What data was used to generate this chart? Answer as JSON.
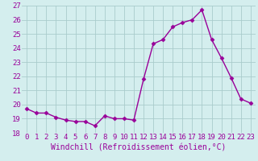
{
  "x": [
    0,
    1,
    2,
    3,
    4,
    5,
    6,
    7,
    8,
    9,
    10,
    11,
    12,
    13,
    14,
    15,
    16,
    17,
    18,
    19,
    20,
    21,
    22,
    23
  ],
  "y": [
    19.7,
    19.4,
    19.4,
    19.1,
    18.9,
    18.8,
    18.8,
    18.5,
    19.2,
    19.0,
    19.0,
    18.9,
    21.8,
    24.3,
    24.6,
    25.5,
    25.8,
    26.0,
    26.7,
    24.6,
    23.3,
    21.9,
    20.4,
    20.1
  ],
  "line_color": "#990099",
  "marker": "D",
  "markersize": 2.5,
  "linewidth": 1.0,
  "xlabel": "Windchill (Refroidissement éolien,°C)",
  "ylim": [
    18,
    27
  ],
  "xlim": [
    -0.5,
    23.5
  ],
  "yticks": [
    18,
    19,
    20,
    21,
    22,
    23,
    24,
    25,
    26,
    27
  ],
  "xticks": [
    0,
    1,
    2,
    3,
    4,
    5,
    6,
    7,
    8,
    9,
    10,
    11,
    12,
    13,
    14,
    15,
    16,
    17,
    18,
    19,
    20,
    21,
    22,
    23
  ],
  "bg_color": "#d4eeee",
  "grid_color": "#aacccc",
  "xlabel_color": "#990099",
  "xlabel_fontsize": 7.0,
  "tick_fontsize": 6.5,
  "tick_label_color": "#990099"
}
